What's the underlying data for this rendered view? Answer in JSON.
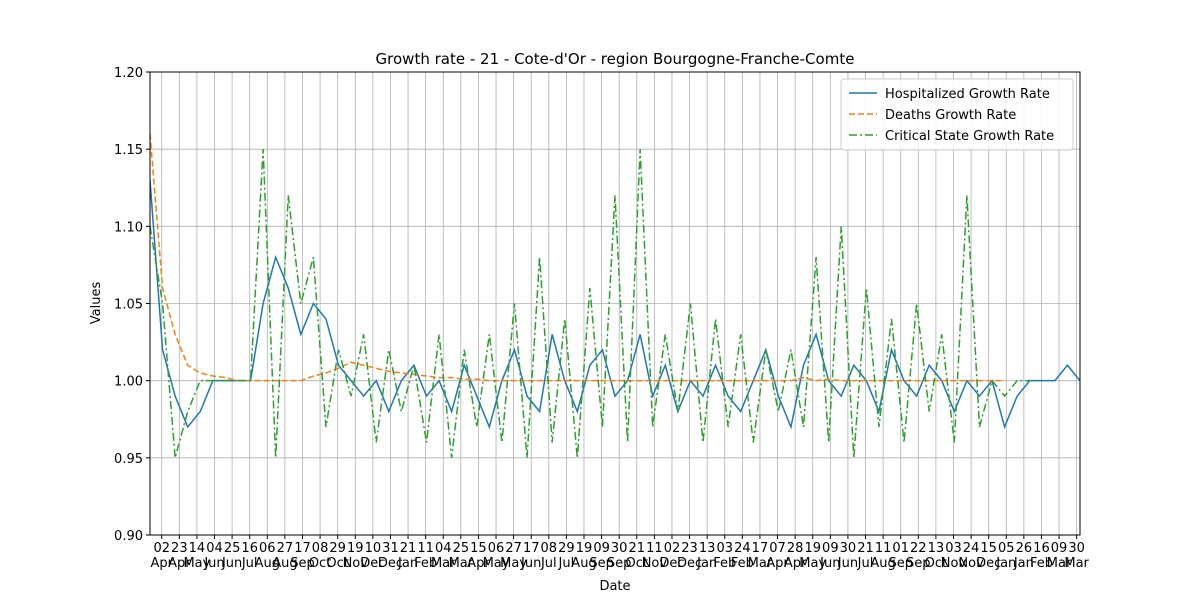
{
  "chart_data": {
    "type": "line",
    "title": "Growth rate - 21 - Cote-d'Or - region Bourgogne-Franche-Comte",
    "xlabel": "Date",
    "ylabel": "Values",
    "xlim": [
      0,
      1110
    ],
    "ylim": [
      0.9,
      1.2
    ],
    "yticks": [
      {
        "value": 0.9,
        "label": "0.90"
      },
      {
        "value": 0.95,
        "label": "0.95"
      },
      {
        "value": 1.0,
        "label": "1.00"
      },
      {
        "value": 1.05,
        "label": "1.05"
      },
      {
        "value": 1.1,
        "label": "1.10"
      },
      {
        "value": 1.15,
        "label": "1.15"
      },
      {
        "value": 1.2,
        "label": "1.20"
      }
    ],
    "xticks": [
      {
        "value": 14,
        "label": "02\nApr"
      },
      {
        "value": 35,
        "label": "23\nApr"
      },
      {
        "value": 56,
        "label": "14\nMay"
      },
      {
        "value": 77,
        "label": "04\nJun"
      },
      {
        "value": 98,
        "label": "25\nJun"
      },
      {
        "value": 119,
        "label": "16\nJul"
      },
      {
        "value": 140,
        "label": "06\nAug"
      },
      {
        "value": 161,
        "label": "27\nAug"
      },
      {
        "value": 182,
        "label": "17\nSep"
      },
      {
        "value": 203,
        "label": "08\nOct"
      },
      {
        "value": 224,
        "label": "29\nOct"
      },
      {
        "value": 245,
        "label": "19\nNov"
      },
      {
        "value": 266,
        "label": "10\nDec"
      },
      {
        "value": 287,
        "label": "31\nDec"
      },
      {
        "value": 308,
        "label": "21\nJan"
      },
      {
        "value": 329,
        "label": "11\nFeb"
      },
      {
        "value": 350,
        "label": "04\nMar"
      },
      {
        "value": 371,
        "label": "25\nMar"
      },
      {
        "value": 392,
        "label": "15\nApr"
      },
      {
        "value": 413,
        "label": "06\nMay"
      },
      {
        "value": 434,
        "label": "27\nMay"
      },
      {
        "value": 455,
        "label": "17\nJun"
      },
      {
        "value": 476,
        "label": "08\nJul"
      },
      {
        "value": 497,
        "label": "29\nJul"
      },
      {
        "value": 518,
        "label": "19\nAug"
      },
      {
        "value": 539,
        "label": "09\nSep"
      },
      {
        "value": 560,
        "label": "30\nSep"
      },
      {
        "value": 581,
        "label": "21\nOct"
      },
      {
        "value": 602,
        "label": "11\nNov"
      },
      {
        "value": 623,
        "label": "02\nDec"
      },
      {
        "value": 644,
        "label": "23\nDec"
      },
      {
        "value": 665,
        "label": "13\nJan"
      },
      {
        "value": 686,
        "label": "03\nFeb"
      },
      {
        "value": 707,
        "label": "24\nFeb"
      },
      {
        "value": 728,
        "label": "17\nMar"
      },
      {
        "value": 749,
        "label": "07\nApr"
      },
      {
        "value": 770,
        "label": "28\nApr"
      },
      {
        "value": 791,
        "label": "19\nMay"
      },
      {
        "value": 812,
        "label": "09\nJun"
      },
      {
        "value": 833,
        "label": "30\nJun"
      },
      {
        "value": 854,
        "label": "21\nJul"
      },
      {
        "value": 875,
        "label": "11\nAug"
      },
      {
        "value": 896,
        "label": "01\nSep"
      },
      {
        "value": 917,
        "label": "22\nSep"
      },
      {
        "value": 938,
        "label": "13\nOct"
      },
      {
        "value": 959,
        "label": "03\nNov"
      },
      {
        "value": 980,
        "label": "24\nNov"
      },
      {
        "value": 1001,
        "label": "15\nDec"
      },
      {
        "value": 1022,
        "label": "05\nJan"
      },
      {
        "value": 1043,
        "label": "26\nJan"
      },
      {
        "value": 1064,
        "label": "16\nFeb"
      },
      {
        "value": 1085,
        "label": "09\nMar"
      },
      {
        "value": 1106,
        "label": "30\nMar"
      }
    ],
    "x": [
      0,
      15,
      30,
      45,
      60,
      75,
      90,
      105,
      120,
      135,
      150,
      165,
      180,
      195,
      210,
      225,
      240,
      255,
      270,
      285,
      300,
      315,
      330,
      345,
      360,
      375,
      390,
      405,
      420,
      435,
      450,
      465,
      480,
      495,
      510,
      525,
      540,
      555,
      570,
      585,
      600,
      615,
      630,
      645,
      660,
      675,
      690,
      705,
      720,
      735,
      750,
      765,
      780,
      795,
      810,
      825,
      840,
      855,
      870,
      885,
      900,
      915,
      930,
      945,
      960,
      975,
      990,
      1005,
      1020,
      1035,
      1050,
      1065,
      1080,
      1095,
      1110
    ],
    "grid": true,
    "legend": "upper right",
    "series": [
      {
        "name": "Hospitalized Growth Rate",
        "color": "#1f77b4",
        "style": "solid",
        "values": [
          1.13,
          1.02,
          0.99,
          0.97,
          0.98,
          1.0,
          1.0,
          1.0,
          1.0,
          1.05,
          1.08,
          1.06,
          1.03,
          1.05,
          1.04,
          1.01,
          1.0,
          0.99,
          1.0,
          0.98,
          1.0,
          1.01,
          0.99,
          1.0,
          0.98,
          1.01,
          0.99,
          0.97,
          1.0,
          1.02,
          0.99,
          0.98,
          1.03,
          1.0,
          0.98,
          1.01,
          1.02,
          0.99,
          1.0,
          1.03,
          0.99,
          1.01,
          0.98,
          1.0,
          0.99,
          1.01,
          0.99,
          0.98,
          1.0,
          1.02,
          0.99,
          0.97,
          1.01,
          1.03,
          1.0,
          0.99,
          1.01,
          1.0,
          0.98,
          1.02,
          1.0,
          0.99,
          1.01,
          1.0,
          0.98,
          1.0,
          0.99,
          1.0,
          0.97,
          0.99,
          1.0,
          1.0,
          1.0,
          1.01,
          1.0
        ]
      },
      {
        "name": "Deaths Growth Rate",
        "color": "#ff7f0e",
        "style": "dashed",
        "values": [
          1.16,
          1.06,
          1.03,
          1.01,
          1.005,
          1.003,
          1.002,
          1.0,
          1.0,
          1.0,
          1.0,
          1.0,
          1.0,
          1.003,
          1.005,
          1.008,
          1.012,
          1.01,
          1.008,
          1.006,
          1.005,
          1.004,
          1.003,
          1.002,
          1.002,
          1.001,
          1.001,
          1.0,
          1.0,
          1.0,
          1.0,
          1.0,
          1.0,
          1.0,
          1.0,
          1.0,
          1.0,
          1.0,
          1.0,
          1.0,
          1.0,
          1.0,
          1.0,
          1.0,
          1.0,
          1.0,
          1.0,
          1.0,
          1.0,
          1.0,
          1.0,
          1.0,
          1.002,
          1.0,
          1.001,
          1.0,
          1.0,
          1.0,
          1.0,
          1.0,
          1.0,
          1.0,
          1.0,
          1.0,
          1.0,
          1.0,
          1.0,
          1.0,
          1.0,
          null,
          null,
          null,
          null,
          null,
          null
        ]
      },
      {
        "name": "Critical State Growth Rate",
        "color": "#2ca02c",
        "style": "dashdot",
        "values": [
          1.1,
          1.05,
          0.95,
          0.98,
          1.0,
          1.0,
          1.0,
          1.0,
          1.0,
          1.15,
          0.95,
          1.12,
          1.05,
          1.08,
          0.97,
          1.02,
          0.99,
          1.03,
          0.96,
          1.02,
          0.98,
          1.01,
          0.96,
          1.03,
          0.95,
          1.02,
          0.97,
          1.03,
          0.96,
          1.05,
          0.95,
          1.08,
          0.96,
          1.04,
          0.95,
          1.06,
          0.97,
          1.12,
          0.96,
          1.15,
          0.97,
          1.03,
          0.98,
          1.05,
          0.96,
          1.04,
          0.97,
          1.03,
          0.96,
          1.02,
          0.98,
          1.02,
          0.97,
          1.08,
          0.96,
          1.1,
          0.95,
          1.06,
          0.97,
          1.04,
          0.96,
          1.05,
          0.98,
          1.03,
          0.96,
          1.12,
          0.97,
          1.0,
          0.99,
          1.0,
          1.0,
          null,
          null,
          null,
          null
        ]
      }
    ]
  }
}
